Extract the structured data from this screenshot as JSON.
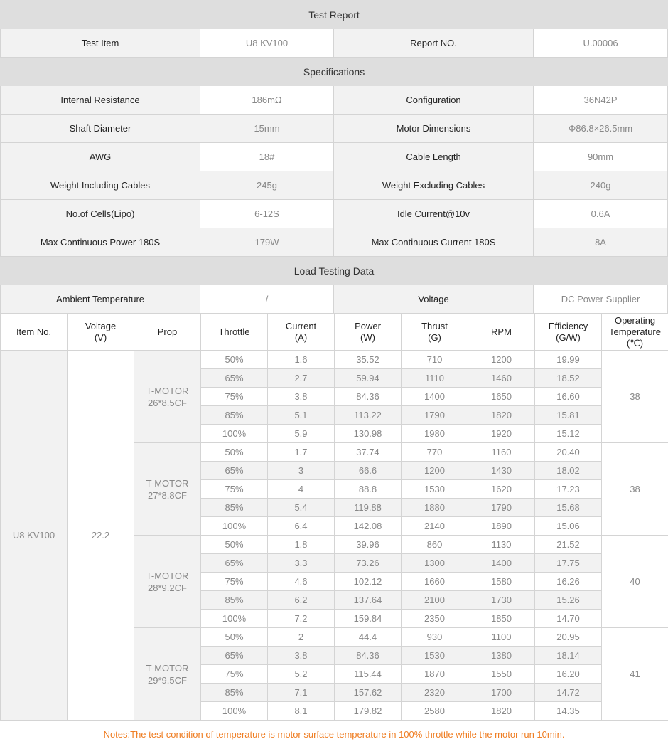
{
  "report": {
    "title": "Test Report",
    "test_item_label": "Test Item",
    "test_item_value": "U8 KV100",
    "report_no_label": "Report NO.",
    "report_no_value": "U.00006"
  },
  "specifications": {
    "title": "Specifications",
    "rows": [
      [
        "Internal Resistance",
        "186mΩ",
        "Configuration",
        "36N42P"
      ],
      [
        "Shaft Diameter",
        "15mm",
        "Motor Dimensions",
        "Φ86.8×26.5mm"
      ],
      [
        "AWG",
        "18#",
        "Cable Length",
        "90mm"
      ],
      [
        "Weight Including Cables",
        "245g",
        "Weight Excluding Cables",
        "240g"
      ],
      [
        "No.of Cells(Lipo)",
        "6-12S",
        "Idle Current@10v",
        "0.6A"
      ],
      [
        "Max Continuous Power 180S",
        "179W",
        "Max Continuous Current 180S",
        "8A"
      ]
    ]
  },
  "load": {
    "title": "Load Testing Data",
    "ambient_label": "Ambient Temperature",
    "ambient_value": "/",
    "voltage_label": "Voltage",
    "voltage_value": "DC Power Supplier",
    "headers": [
      "Item No.",
      "Voltage\n(V)",
      "Prop",
      "Throttle",
      "Current\n(A)",
      "Power\n(W)",
      "Thrust\n(G)",
      "RPM",
      "Efficiency\n(G/W)",
      "Operating\nTemperature\n(℃)"
    ],
    "item_no": "U8 KV100",
    "voltage": "22.2",
    "props": [
      {
        "name": "T-MOTOR\n26*8.5CF",
        "temp": "38",
        "rows": [
          [
            "50%",
            "1.6",
            "35.52",
            "710",
            "1200",
            "19.99"
          ],
          [
            "65%",
            "2.7",
            "59.94",
            "1110",
            "1460",
            "18.52"
          ],
          [
            "75%",
            "3.8",
            "84.36",
            "1400",
            "1650",
            "16.60"
          ],
          [
            "85%",
            "5.1",
            "113.22",
            "1790",
            "1820",
            "15.81"
          ],
          [
            "100%",
            "5.9",
            "130.98",
            "1980",
            "1920",
            "15.12"
          ]
        ]
      },
      {
        "name": "T-MOTOR\n27*8.8CF",
        "temp": "38",
        "rows": [
          [
            "50%",
            "1.7",
            "37.74",
            "770",
            "1160",
            "20.40"
          ],
          [
            "65%",
            "3",
            "66.6",
            "1200",
            "1430",
            "18.02"
          ],
          [
            "75%",
            "4",
            "88.8",
            "1530",
            "1620",
            "17.23"
          ],
          [
            "85%",
            "5.4",
            "119.88",
            "1880",
            "1790",
            "15.68"
          ],
          [
            "100%",
            "6.4",
            "142.08",
            "2140",
            "1890",
            "15.06"
          ]
        ]
      },
      {
        "name": "T-MOTOR\n28*9.2CF",
        "temp": "40",
        "rows": [
          [
            "50%",
            "1.8",
            "39.96",
            "860",
            "1130",
            "21.52"
          ],
          [
            "65%",
            "3.3",
            "73.26",
            "1300",
            "1400",
            "17.75"
          ],
          [
            "75%",
            "4.6",
            "102.12",
            "1660",
            "1580",
            "16.26"
          ],
          [
            "85%",
            "6.2",
            "137.64",
            "2100",
            "1730",
            "15.26"
          ],
          [
            "100%",
            "7.2",
            "159.84",
            "2350",
            "1850",
            "14.70"
          ]
        ]
      },
      {
        "name": "T-MOTOR\n29*9.5CF",
        "temp": "41",
        "rows": [
          [
            "50%",
            "2",
            "44.4",
            "930",
            "1100",
            "20.95"
          ],
          [
            "65%",
            "3.8",
            "84.36",
            "1530",
            "1380",
            "18.14"
          ],
          [
            "75%",
            "5.2",
            "115.44",
            "1870",
            "1550",
            "16.20"
          ],
          [
            "85%",
            "7.1",
            "157.62",
            "2320",
            "1700",
            "14.72"
          ],
          [
            "100%",
            "8.1",
            "179.82",
            "2580",
            "1820",
            "14.35"
          ]
        ]
      }
    ]
  },
  "notes": "Notes:The test condition of temperature is motor surface temperature in 100% throttle while the motor run 10min.",
  "colors": {
    "section_bg": "#dedede",
    "label_bg": "#f2f2f2",
    "value_text": "#888888",
    "notes_text": "#ef7d22"
  }
}
